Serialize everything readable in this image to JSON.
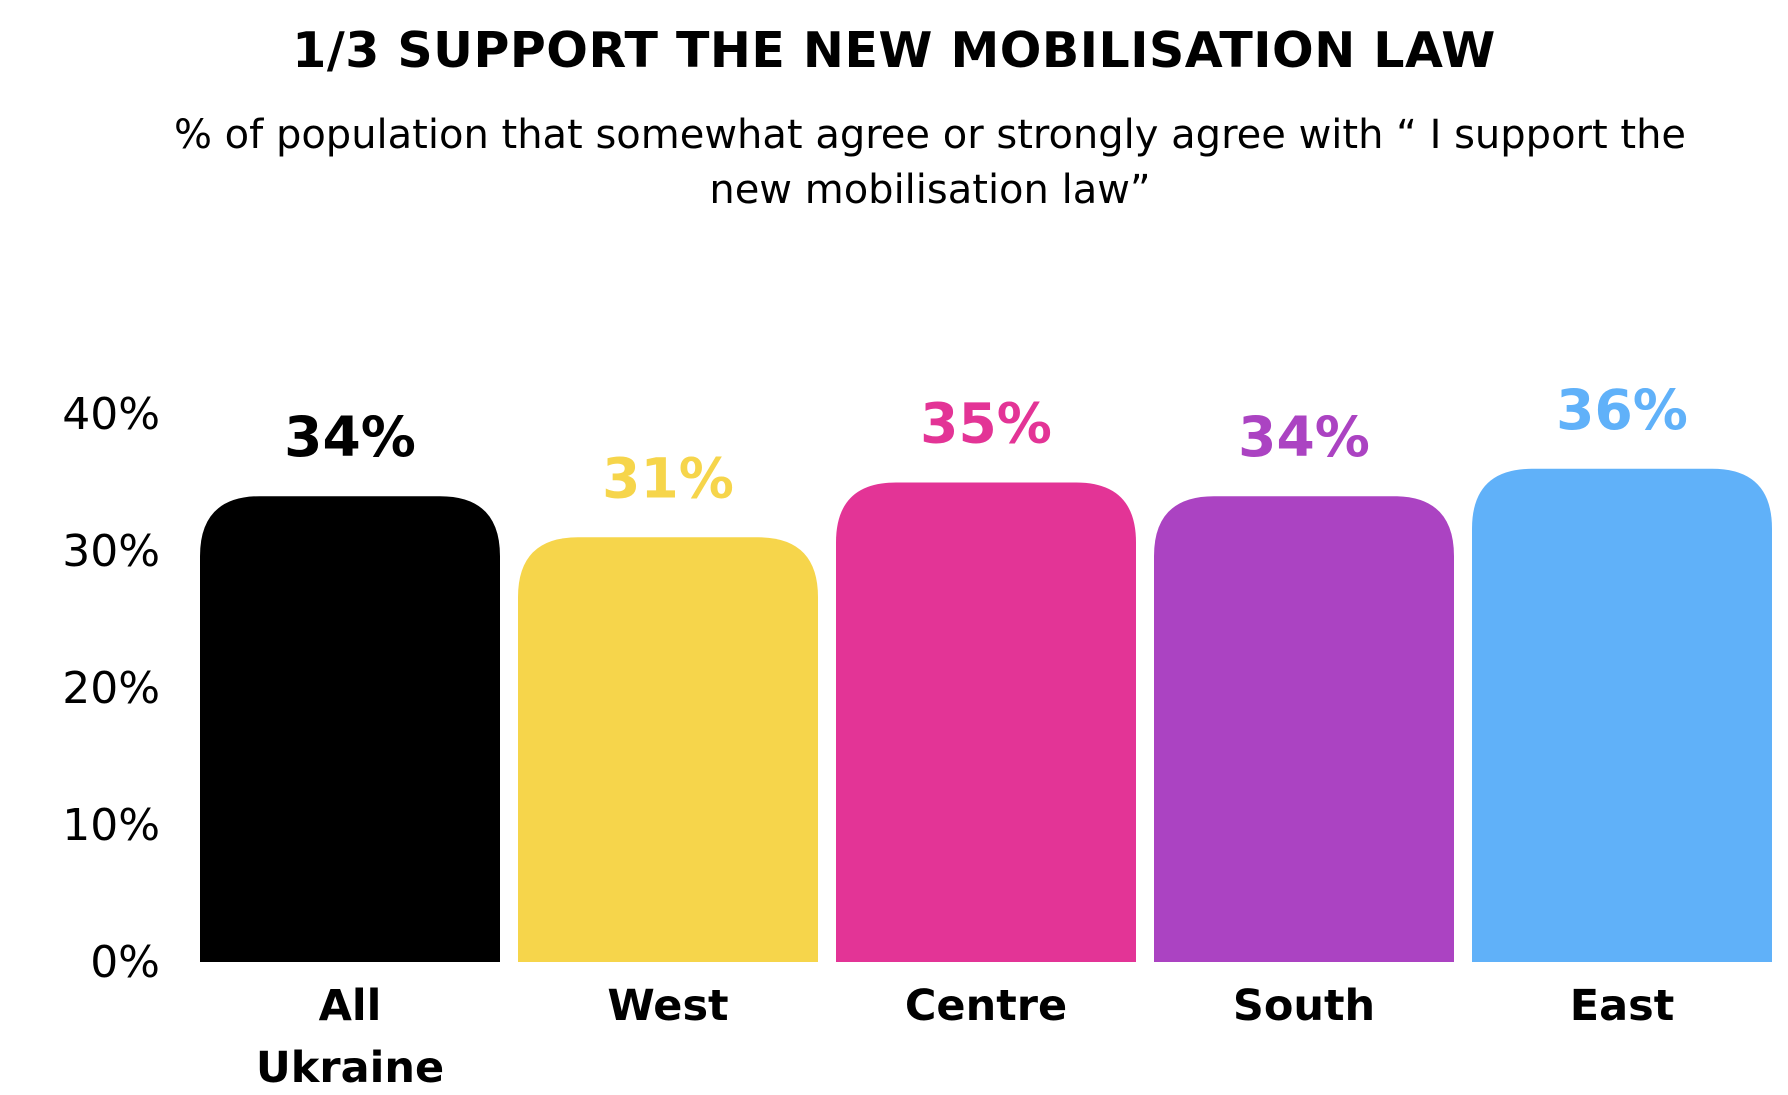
{
  "chart_data": {
    "type": "bar",
    "title": "1/3 SUPPORT THE NEW MOBILISATION LAW",
    "subtitle": "% of population that somewhat agree or strongly agree with “ I support the new mobilisation law”",
    "categories": [
      [
        "All",
        "Ukraine"
      ],
      [
        "West"
      ],
      [
        "Centre"
      ],
      [
        "South"
      ],
      [
        "East"
      ]
    ],
    "values": [
      34,
      31,
      35,
      34,
      36
    ],
    "value_labels": [
      "34%",
      "31%",
      "35%",
      "34%",
      "36%"
    ],
    "colors": [
      "#000000",
      "#f6d54b",
      "#e33496",
      "#ab43c2",
      "#60b1f9"
    ],
    "yticks": [
      "0%",
      "10%",
      "20%",
      "30%",
      "40%"
    ],
    "ylim": [
      0,
      40
    ],
    "grid": false,
    "xlabel": "",
    "ylabel": ""
  }
}
